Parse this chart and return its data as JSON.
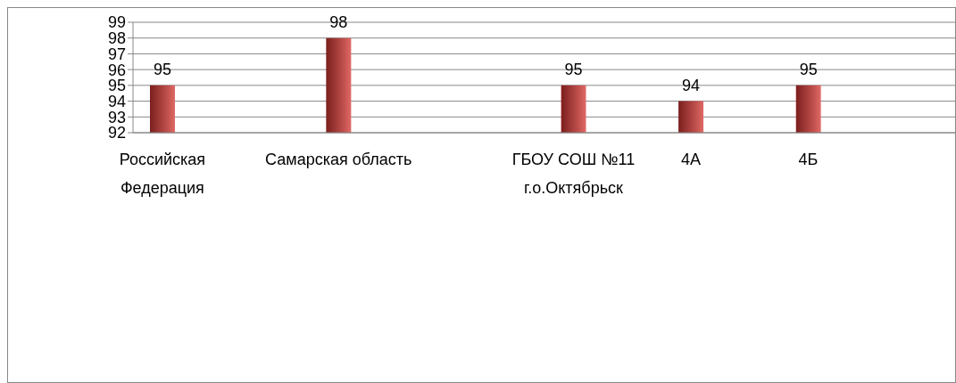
{
  "chart_data": {
    "type": "bar",
    "categories": [
      "Российская Федерация",
      null,
      null,
      "Самарская область",
      null,
      null,
      null,
      "ГБОУ СОШ №11 г.о.Октябрьск",
      null,
      "4А",
      null,
      "4Б",
      null,
      null
    ],
    "values": [
      95,
      null,
      null,
      98,
      null,
      null,
      null,
      95,
      null,
      94,
      null,
      95,
      null,
      null
    ],
    "color": "#c0504d",
    "ylim": [
      92,
      99
    ],
    "yticks": [
      92,
      93,
      94,
      95,
      96,
      97,
      98,
      99
    ],
    "grid": "y",
    "data_labels": true,
    "legend": false
  }
}
